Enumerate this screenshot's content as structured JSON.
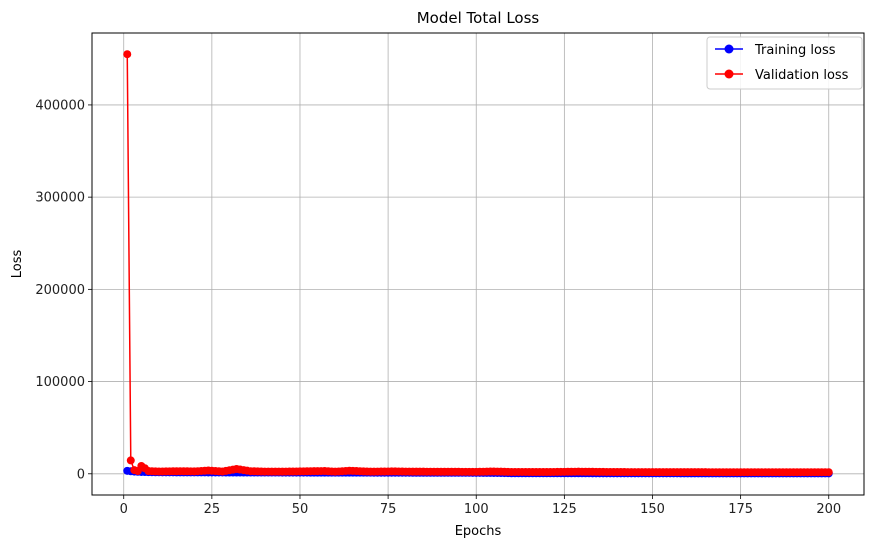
{
  "chart_data": {
    "type": "line",
    "title": "Model Total Loss",
    "xlabel": "Epochs",
    "ylabel": "Loss",
    "xlim": [
      -9,
      210
    ],
    "ylim": [
      -23000,
      478000
    ],
    "xticks": [
      0,
      25,
      50,
      75,
      100,
      125,
      150,
      175,
      200
    ],
    "yticks": [
      0,
      100000,
      200000,
      300000,
      400000
    ],
    "grid": true,
    "legend_position": "top-right",
    "colors": {
      "training": "#0000ff",
      "validation": "#ff0000",
      "grid": "#b0b0b0",
      "axis": "#000000"
    },
    "series": [
      {
        "name": "Training loss",
        "color": "#0000ff",
        "x": [
          1,
          2,
          3,
          4,
          5,
          6,
          7,
          8,
          9,
          10,
          20,
          30,
          40,
          50,
          60,
          70,
          80,
          90,
          100,
          106,
          110,
          120,
          130,
          140,
          150,
          160,
          170,
          180,
          190,
          200
        ],
        "values": [
          3200,
          2700,
          2400,
          2200,
          2000,
          1900,
          1800,
          1700,
          1650,
          1600,
          1500,
          1400,
          1350,
          1300,
          1250,
          1200,
          1150,
          1100,
          1050,
          900,
          600,
          550,
          520,
          500,
          480,
          470,
          460,
          450,
          440,
          430
        ]
      },
      {
        "name": "Validation loss",
        "color": "#ff0000",
        "x": [
          1,
          2,
          3,
          4,
          5,
          6,
          7,
          8,
          9,
          10,
          14,
          16,
          20,
          24,
          28,
          32,
          36,
          40,
          44,
          50,
          57,
          60,
          64,
          70,
          77,
          80,
          90,
          100,
          105,
          110,
          120,
          129,
          140,
          150,
          160,
          170,
          180,
          190,
          200
        ],
        "values": [
          455000,
          14500,
          4000,
          3000,
          8500,
          6000,
          3000,
          2800,
          2600,
          2500,
          2700,
          2800,
          2600,
          3500,
          2500,
          5200,
          2800,
          2400,
          2300,
          2600,
          3000,
          2300,
          3300,
          2300,
          2600,
          2400,
          2200,
          2100,
          2500,
          2000,
          1900,
          2300,
          1900,
          1800,
          1800,
          1700,
          1700,
          1700,
          1700
        ]
      }
    ]
  }
}
